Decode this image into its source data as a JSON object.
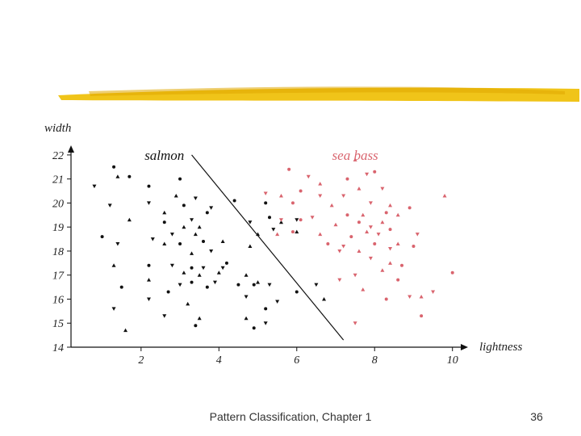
{
  "slide": {
    "footer_title": "Pattern Classification, Chapter 1",
    "page_number": "36",
    "accent_color": "#f0c419"
  },
  "chart_data": {
    "type": "scatter",
    "xlabel": "lightness",
    "ylabel": "width",
    "xlim": [
      0.2,
      10.4
    ],
    "ylim": [
      14,
      22.4
    ],
    "xticks": [
      2,
      4,
      6,
      8,
      10
    ],
    "yticks": [
      14,
      15,
      16,
      17,
      18,
      19,
      20,
      21,
      22
    ],
    "grid": false,
    "legend": "inline labels above clusters",
    "series": [
      {
        "name": "salmon",
        "color": "#111111",
        "points": [
          [
            1.3,
            21.5
          ],
          [
            0.8,
            20.7
          ],
          [
            1.4,
            21.1
          ],
          [
            1.7,
            21.1
          ],
          [
            1.2,
            19.9
          ],
          [
            1.7,
            19.3
          ],
          [
            1.0,
            18.6
          ],
          [
            1.4,
            18.3
          ],
          [
            1.3,
            17.4
          ],
          [
            1.5,
            16.5
          ],
          [
            1.3,
            15.6
          ],
          [
            1.6,
            14.7
          ],
          [
            2.2,
            20.7
          ],
          [
            2.2,
            20.0
          ],
          [
            2.6,
            19.6
          ],
          [
            2.6,
            19.2
          ],
          [
            2.3,
            18.5
          ],
          [
            2.6,
            18.3
          ],
          [
            3.0,
            18.3
          ],
          [
            2.8,
            18.7
          ],
          [
            3.1,
            19.0
          ],
          [
            3.1,
            19.9
          ],
          [
            3.4,
            20.2
          ],
          [
            2.9,
            20.3
          ],
          [
            3.0,
            21.0
          ],
          [
            3.3,
            19.3
          ],
          [
            3.5,
            19.0
          ],
          [
            3.7,
            19.6
          ],
          [
            3.8,
            19.8
          ],
          [
            3.4,
            18.7
          ],
          [
            3.6,
            18.4
          ],
          [
            3.8,
            18.0
          ],
          [
            3.3,
            17.9
          ],
          [
            2.2,
            17.4
          ],
          [
            2.8,
            17.4
          ],
          [
            3.1,
            17.1
          ],
          [
            3.3,
            17.3
          ],
          [
            3.6,
            17.3
          ],
          [
            3.5,
            17.0
          ],
          [
            3.3,
            16.7
          ],
          [
            3.0,
            16.6
          ],
          [
            2.2,
            16.8
          ],
          [
            2.7,
            16.3
          ],
          [
            2.2,
            16.0
          ],
          [
            3.2,
            15.8
          ],
          [
            3.7,
            16.5
          ],
          [
            3.9,
            16.7
          ],
          [
            3.5,
            15.2
          ],
          [
            3.4,
            14.9
          ],
          [
            2.6,
            15.3
          ],
          [
            4.1,
            18.4
          ],
          [
            4.2,
            17.5
          ],
          [
            4.1,
            17.3
          ],
          [
            4.0,
            17.1
          ],
          [
            4.5,
            16.6
          ],
          [
            4.7,
            16.1
          ],
          [
            4.7,
            17.0
          ],
          [
            4.9,
            16.6
          ],
          [
            5.3,
            16.6
          ],
          [
            5.0,
            16.7
          ],
          [
            5.2,
            15.6
          ],
          [
            5.2,
            15.0
          ],
          [
            4.7,
            15.2
          ],
          [
            4.9,
            14.8
          ],
          [
            5.5,
            15.9
          ],
          [
            4.8,
            18.2
          ],
          [
            5.3,
            19.4
          ],
          [
            5.4,
            18.9
          ],
          [
            5.6,
            19.2
          ],
          [
            5.2,
            20.0
          ],
          [
            6.0,
            19.3
          ],
          [
            6.0,
            18.8
          ],
          [
            6.0,
            16.3
          ],
          [
            6.5,
            16.6
          ],
          [
            6.7,
            16.0
          ],
          [
            4.4,
            20.1
          ],
          [
            4.8,
            19.2
          ],
          [
            5.0,
            18.7
          ]
        ]
      },
      {
        "name": "sea bass",
        "color": "#d9646e",
        "points": [
          [
            5.8,
            21.4
          ],
          [
            6.3,
            21.1
          ],
          [
            6.6,
            20.8
          ],
          [
            6.1,
            20.5
          ],
          [
            6.6,
            20.3
          ],
          [
            6.9,
            19.9
          ],
          [
            5.9,
            20.0
          ],
          [
            5.2,
            20.4
          ],
          [
            5.6,
            20.3
          ],
          [
            6.1,
            19.3
          ],
          [
            6.4,
            19.4
          ],
          [
            6.6,
            18.7
          ],
          [
            5.9,
            18.8
          ],
          [
            5.6,
            19.3
          ],
          [
            5.5,
            18.7
          ],
          [
            6.8,
            18.3
          ],
          [
            7.1,
            18.0
          ],
          [
            7.0,
            19.1
          ],
          [
            7.3,
            19.5
          ],
          [
            7.2,
            20.3
          ],
          [
            7.6,
            20.6
          ],
          [
            7.3,
            21.0
          ],
          [
            7.8,
            21.2
          ],
          [
            7.5,
            21.8
          ],
          [
            8.0,
            21.3
          ],
          [
            8.2,
            20.6
          ],
          [
            8.4,
            19.9
          ],
          [
            8.3,
            19.6
          ],
          [
            7.9,
            20.0
          ],
          [
            7.7,
            19.5
          ],
          [
            7.6,
            19.2
          ],
          [
            7.9,
            19.0
          ],
          [
            8.2,
            19.2
          ],
          [
            8.4,
            18.9
          ],
          [
            8.1,
            18.7
          ],
          [
            7.8,
            18.8
          ],
          [
            7.4,
            18.6
          ],
          [
            7.2,
            18.2
          ],
          [
            7.6,
            18.0
          ],
          [
            8.0,
            18.3
          ],
          [
            8.4,
            18.1
          ],
          [
            8.6,
            18.3
          ],
          [
            9.0,
            18.2
          ],
          [
            9.1,
            18.7
          ],
          [
            8.6,
            19.5
          ],
          [
            8.9,
            19.8
          ],
          [
            7.9,
            17.7
          ],
          [
            8.4,
            17.5
          ],
          [
            8.7,
            17.4
          ],
          [
            7.5,
            17.0
          ],
          [
            8.2,
            17.2
          ],
          [
            8.6,
            16.8
          ],
          [
            7.1,
            16.8
          ],
          [
            7.7,
            16.4
          ],
          [
            8.3,
            16.0
          ],
          [
            8.9,
            16.1
          ],
          [
            9.2,
            16.1
          ],
          [
            9.2,
            15.3
          ],
          [
            7.5,
            15.0
          ],
          [
            9.8,
            20.3
          ],
          [
            10.0,
            17.1
          ],
          [
            9.5,
            16.3
          ]
        ]
      }
    ],
    "decision_boundary": [
      [
        3.3,
        22.0
      ],
      [
        7.2,
        14.3
      ]
    ],
    "annotations": [
      {
        "text": "salmon",
        "x": 2.6,
        "y": 21.8,
        "color": "#111111"
      },
      {
        "text": "sea bass",
        "x": 7.5,
        "y": 21.8,
        "color": "#d9646e"
      }
    ]
  }
}
